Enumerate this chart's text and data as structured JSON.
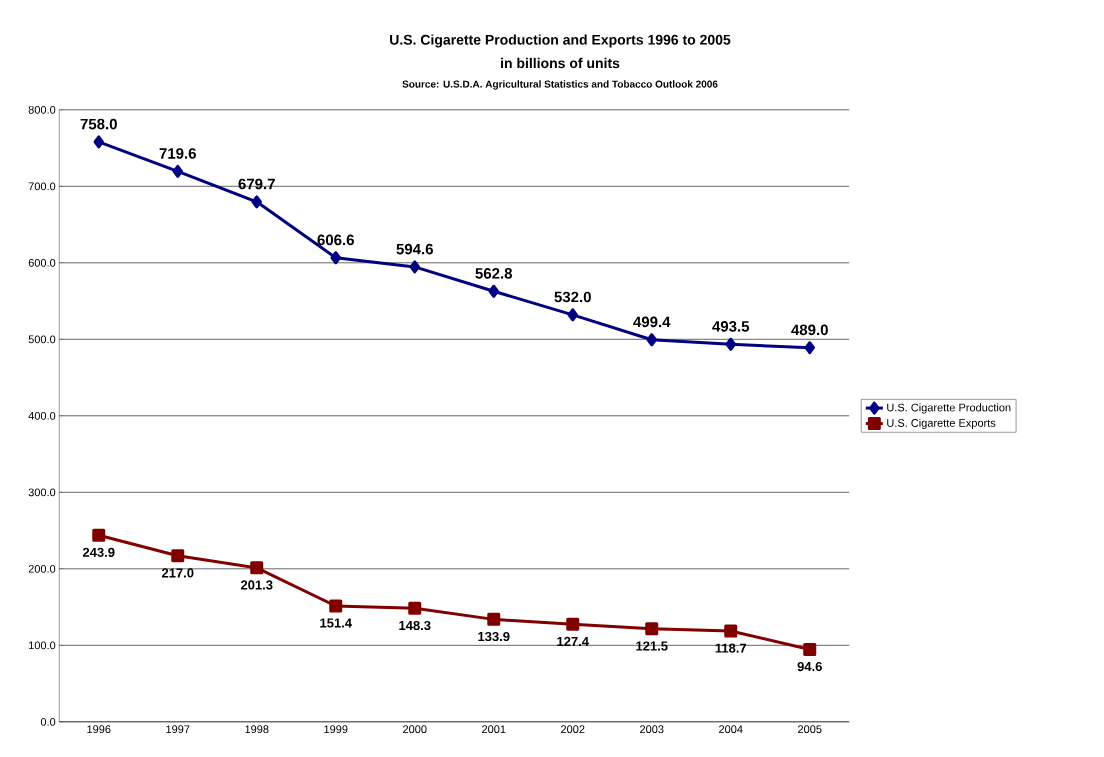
{
  "chart_data": {
    "type": "line",
    "title": "U.S. Cigarette Production and Exports 1996 to 2005",
    "subtitle": "in billions of units",
    "annotations": [
      "Source: U.S.D.A. Agricultural Statistics and Tobacco Outlook 2006"
    ],
    "categories": [
      "1996",
      "1997",
      "1998",
      "1999",
      "2000",
      "2001",
      "2002",
      "2003",
      "2004",
      "2005"
    ],
    "series": [
      {
        "name": "U.S. Cigarette Production",
        "color": "#000080",
        "marker": "diamond",
        "values": [
          758.0,
          719.6,
          679.7,
          606.6,
          594.6,
          562.8,
          532.0,
          499.4,
          493.5,
          489.0
        ],
        "value_labels": [
          "758.0",
          "719.6",
          "679.7",
          "606.6",
          "594.6",
          "562.8",
          "532.0",
          "499.4",
          "493.5",
          "489.0"
        ]
      },
      {
        "name": "U.S. Cigarette Exports",
        "color": "#800000",
        "marker": "square",
        "values": [
          243.9,
          217.0,
          201.3,
          151.4,
          148.3,
          133.9,
          127.4,
          121.5,
          118.7,
          94.6
        ],
        "value_labels": [
          "243.9",
          "217.0",
          "201.3",
          "151.4",
          "148.3",
          "133.9",
          "127.4",
          "121.5",
          "118.7",
          "94.6"
        ]
      }
    ],
    "ylim": [
      0,
      800
    ],
    "yticks": [
      {
        "value": 0,
        "label": "0.0"
      },
      {
        "value": 100,
        "label": "100.0"
      },
      {
        "value": 200,
        "label": "200.0"
      },
      {
        "value": 300,
        "label": "300.0"
      },
      {
        "value": 400,
        "label": "400.0"
      },
      {
        "value": 500,
        "label": "500.0"
      },
      {
        "value": 600,
        "label": "600.0"
      },
      {
        "value": 700,
        "label": "700.0"
      },
      {
        "value": 800,
        "label": "800.0"
      }
    ],
    "grid": "y",
    "legend": "right",
    "line_style": "solid"
  }
}
